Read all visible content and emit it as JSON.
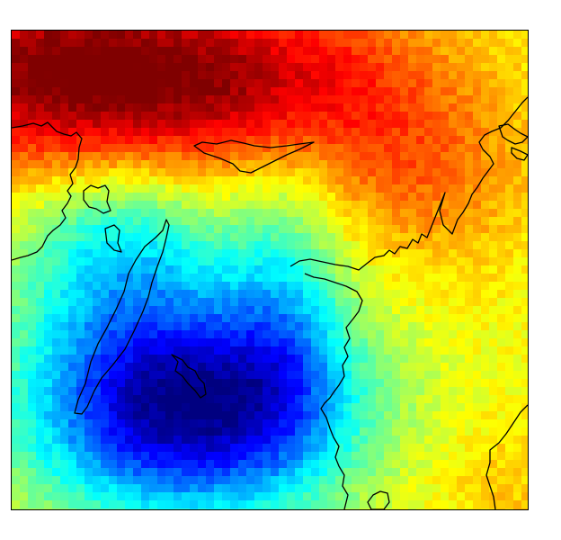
{
  "map": {
    "type": "heatmap",
    "colormap": "jet",
    "grid_on": false,
    "legend": "none",
    "frame_color": "#000000",
    "coastline_color": "#000000"
  }
}
